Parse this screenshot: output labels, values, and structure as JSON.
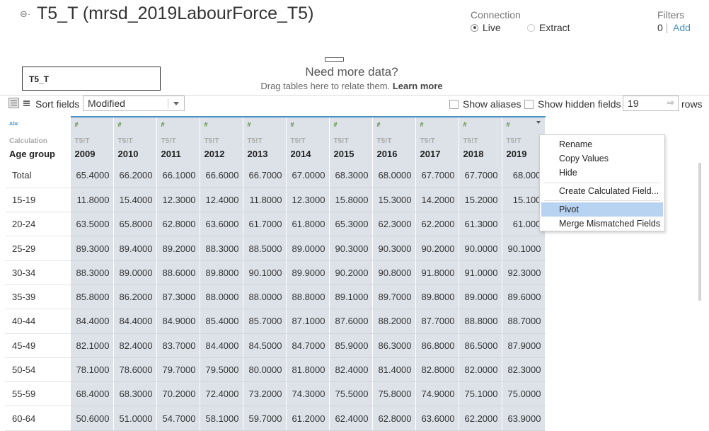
{
  "header": {
    "title": "T5_T (mrsd_2019LabourForce_T5)",
    "connection_label": "Connection",
    "live_label": "Live",
    "extract_label": "Extract",
    "filters_label": "Filters",
    "filters_count": "0",
    "filters_add": "Add"
  },
  "canvas": {
    "table_name": "T5_T",
    "need_more": "Need more data?",
    "drag_text": "Drag tables here to relate them.",
    "learn_more": "Learn more"
  },
  "toolbar": {
    "sort_label": "Sort fields",
    "sort_value": "Modified",
    "show_aliases": "Show aliases",
    "show_hidden": "Show hidden fields",
    "rows_value": "19",
    "rows_label": "rows"
  },
  "grid": {
    "first_col": {
      "type": "Abc",
      "source": "Calculation",
      "name": "Age group"
    },
    "columns": [
      {
        "type": "#",
        "source": "T5!T",
        "name": "2009"
      },
      {
        "type": "#",
        "source": "T5!T",
        "name": "2010"
      },
      {
        "type": "#",
        "source": "T5!T",
        "name": "2011"
      },
      {
        "type": "#",
        "source": "T5!T",
        "name": "2012"
      },
      {
        "type": "#",
        "source": "T5!T",
        "name": "2013"
      },
      {
        "type": "#",
        "source": "T5!T",
        "name": "2014"
      },
      {
        "type": "#",
        "source": "T5!T",
        "name": "2015"
      },
      {
        "type": "#",
        "source": "T5!T",
        "name": "2016"
      },
      {
        "type": "#",
        "source": "T5!T",
        "name": "2017"
      },
      {
        "type": "#",
        "source": "T5!T",
        "name": "2018"
      },
      {
        "type": "#",
        "source": "T5!T",
        "name": "2019"
      }
    ],
    "rows": [
      {
        "label": "Total",
        "values": [
          "65.4000",
          "66.2000",
          "66.1000",
          "66.6000",
          "66.7000",
          "67.0000",
          "68.3000",
          "68.0000",
          "67.7000",
          "67.7000",
          "68.000"
        ]
      },
      {
        "label": "15-19",
        "values": [
          "11.8000",
          "15.4000",
          "12.3000",
          "12.4000",
          "11.8000",
          "12.3000",
          "15.8000",
          "15.3000",
          "14.2000",
          "15.2000",
          "15.100"
        ]
      },
      {
        "label": "20-24",
        "values": [
          "63.5000",
          "65.8000",
          "62.8000",
          "63.6000",
          "61.7000",
          "61.8000",
          "65.3000",
          "62.3000",
          "62.2000",
          "61.3000",
          "61.000"
        ]
      },
      {
        "label": "25-29",
        "values": [
          "89.3000",
          "89.4000",
          "89.2000",
          "88.3000",
          "88.5000",
          "89.0000",
          "90.3000",
          "90.3000",
          "90.2000",
          "90.0000",
          "90.1000"
        ]
      },
      {
        "label": "30-34",
        "values": [
          "88.3000",
          "89.0000",
          "88.6000",
          "89.8000",
          "90.1000",
          "89.9000",
          "90.2000",
          "90.8000",
          "91.8000",
          "91.0000",
          "92.3000"
        ]
      },
      {
        "label": "35-39",
        "values": [
          "85.8000",
          "86.2000",
          "87.3000",
          "88.0000",
          "88.0000",
          "88.8000",
          "89.1000",
          "89.7000",
          "89.8000",
          "89.0000",
          "89.6000"
        ]
      },
      {
        "label": "40-44",
        "values": [
          "84.4000",
          "84.4000",
          "84.9000",
          "85.4000",
          "85.7000",
          "87.1000",
          "87.6000",
          "88.2000",
          "87.7000",
          "88.8000",
          "88.7000"
        ]
      },
      {
        "label": "45-49",
        "values": [
          "82.1000",
          "82.4000",
          "83.7000",
          "84.4000",
          "84.5000",
          "84.7000",
          "85.9000",
          "86.3000",
          "86.8000",
          "86.5000",
          "87.9000"
        ]
      },
      {
        "label": "50-54",
        "values": [
          "78.1000",
          "78.6000",
          "79.7000",
          "79.5000",
          "80.0000",
          "81.8000",
          "82.4000",
          "81.4000",
          "82.8000",
          "82.0000",
          "82.3000"
        ]
      },
      {
        "label": "55-59",
        "values": [
          "68.4000",
          "68.3000",
          "70.2000",
          "72.4000",
          "73.2000",
          "74.3000",
          "75.5000",
          "75.8000",
          "74.9000",
          "75.1000",
          "75.0000"
        ]
      },
      {
        "label": "60-64",
        "values": [
          "50.6000",
          "51.0000",
          "54.7000",
          "58.1000",
          "59.7000",
          "61.2000",
          "62.4000",
          "62.8000",
          "63.6000",
          "62.2000",
          "63.9000"
        ]
      }
    ]
  },
  "context_menu": {
    "items": [
      "Rename",
      "Copy Values",
      "Hide",
      "Create Calculated Field...",
      "Pivot",
      "Merge Mismatched Fields"
    ],
    "highlighted": "Pivot"
  }
}
